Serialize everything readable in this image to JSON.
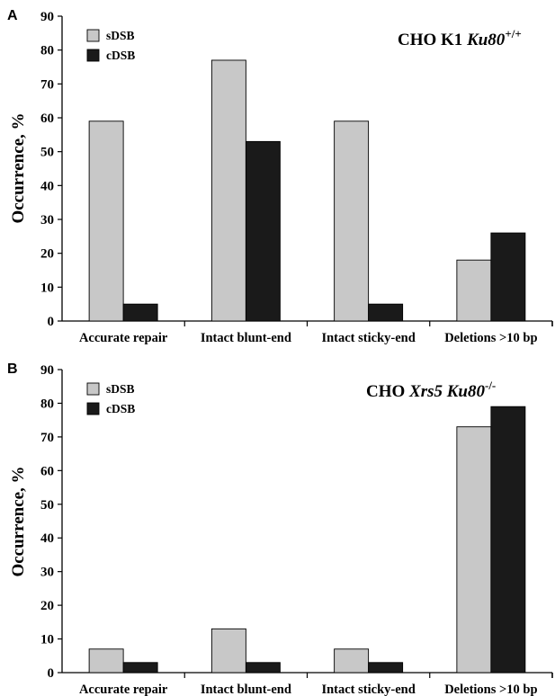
{
  "chart_data": [
    {
      "panel_label": "A",
      "type": "bar",
      "title": {
        "prefix": "CHO K1 ",
        "gene": "Ku80",
        "superscript": "+/+"
      },
      "ylabel": "Occurrence, %",
      "ylim": [
        0,
        90
      ],
      "yticks": [
        0,
        10,
        20,
        30,
        40,
        50,
        60,
        70,
        80,
        90
      ],
      "categories": [
        "Accurate repair",
        "Intact blunt-end",
        "Intact sticky-end",
        "Deletions >10 bp"
      ],
      "legend_position": "top-left",
      "grid": false,
      "series": [
        {
          "name": "sDSB",
          "color": "#c8c8c8",
          "values": [
            59,
            77,
            59,
            18
          ]
        },
        {
          "name": "cDSB",
          "color": "#1a1a1a",
          "values": [
            5,
            53,
            5,
            26
          ]
        }
      ]
    },
    {
      "panel_label": "B",
      "type": "bar",
      "title": {
        "prefix": "CHO ",
        "gene": "Xrs5 Ku80",
        "superscript": "-/-"
      },
      "ylabel": "Occurrence, %",
      "ylim": [
        0,
        90
      ],
      "yticks": [
        0,
        10,
        20,
        30,
        40,
        50,
        60,
        70,
        80,
        90
      ],
      "categories": [
        "Accurate repair",
        "Intact blunt-end",
        "Intact sticky-end",
        "Deletions >10 bp"
      ],
      "legend_position": "top-left",
      "grid": false,
      "series": [
        {
          "name": "sDSB",
          "color": "#c8c8c8",
          "values": [
            7,
            13,
            7,
            73
          ]
        },
        {
          "name": "cDSB",
          "color": "#1a1a1a",
          "values": [
            3,
            3,
            3,
            79
          ]
        }
      ]
    }
  ]
}
